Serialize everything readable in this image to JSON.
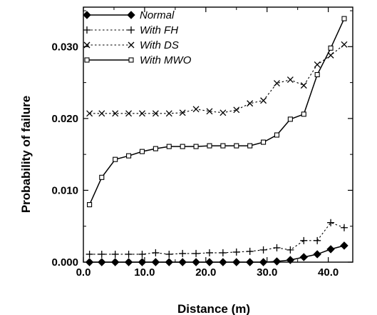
{
  "chart_data": {
    "type": "line",
    "xlabel": "Distance (m)",
    "ylabel": "Probability of failure",
    "xlim": [
      0,
      44
    ],
    "ylim": [
      0,
      0.0355
    ],
    "xticks": [
      0,
      10,
      20,
      30,
      40
    ],
    "xtick_labels": [
      "0.0",
      "10.0",
      "20.0",
      "30.0",
      "40.0"
    ],
    "yticks": [
      0,
      0.01,
      0.02,
      0.03
    ],
    "ytick_labels": [
      "0.000",
      "0.010",
      "0.020",
      "0.030"
    ],
    "legend_position": "top-left",
    "grid": false,
    "series": [
      {
        "name": "Normal",
        "marker": "filled-diamond",
        "line": "solid",
        "color": "#000000",
        "x": [
          1,
          3,
          5.2,
          7.4,
          9.6,
          11.8,
          14,
          16.2,
          18.4,
          20.6,
          22.8,
          25,
          27.2,
          29.4,
          31.6,
          33.8,
          36,
          38.2,
          40.4,
          42.6
        ],
        "y": [
          0,
          0,
          0,
          0,
          0,
          0,
          0,
          0,
          0,
          0,
          0,
          0,
          0,
          0,
          0.0001,
          0.0003,
          0.0007,
          0.0011,
          0.0018,
          0.0023
        ]
      },
      {
        "name": "With FH",
        "marker": "plus",
        "line": "dotted",
        "color": "#000000",
        "x": [
          1,
          3,
          5.2,
          7.4,
          9.6,
          11.8,
          14,
          16.2,
          18.4,
          20.6,
          22.8,
          25,
          27.2,
          29.4,
          31.6,
          33.8,
          36,
          38.2,
          40.4,
          42.6
        ],
        "y": [
          0.0011,
          0.0011,
          0.0011,
          0.0011,
          0.0011,
          0.0013,
          0.0011,
          0.0012,
          0.0012,
          0.0013,
          0.0013,
          0.0014,
          0.0015,
          0.0017,
          0.002,
          0.0017,
          0.003,
          0.003,
          0.0055,
          0.0048
        ]
      },
      {
        "name": "With DS",
        "marker": "cross",
        "line": "dotted",
        "color": "#000000",
        "x": [
          1,
          3,
          5.2,
          7.4,
          9.6,
          11.8,
          14,
          16.2,
          18.4,
          20.6,
          22.8,
          25,
          27.2,
          29.4,
          31.6,
          33.8,
          36,
          38.2,
          40.4,
          42.6
        ],
        "y": [
          0.0207,
          0.0207,
          0.0207,
          0.0207,
          0.0207,
          0.0207,
          0.0207,
          0.0208,
          0.0213,
          0.021,
          0.0208,
          0.0212,
          0.0221,
          0.0225,
          0.0249,
          0.0254,
          0.0246,
          0.0275,
          0.0288,
          0.0303
        ]
      },
      {
        "name": "With MWO",
        "marker": "open-square",
        "line": "solid",
        "color": "#000000",
        "x": [
          1,
          3,
          5.2,
          7.4,
          9.6,
          11.8,
          14,
          16.2,
          18.4,
          20.6,
          22.8,
          25,
          27.2,
          29.4,
          31.6,
          33.8,
          36,
          38.2,
          40.4,
          42.6
        ],
        "y": [
          0.008,
          0.0118,
          0.0143,
          0.0148,
          0.0154,
          0.0158,
          0.0161,
          0.0161,
          0.0161,
          0.0162,
          0.0162,
          0.0162,
          0.0162,
          0.0167,
          0.0177,
          0.0199,
          0.0206,
          0.0261,
          0.0298,
          0.0339
        ]
      }
    ]
  }
}
